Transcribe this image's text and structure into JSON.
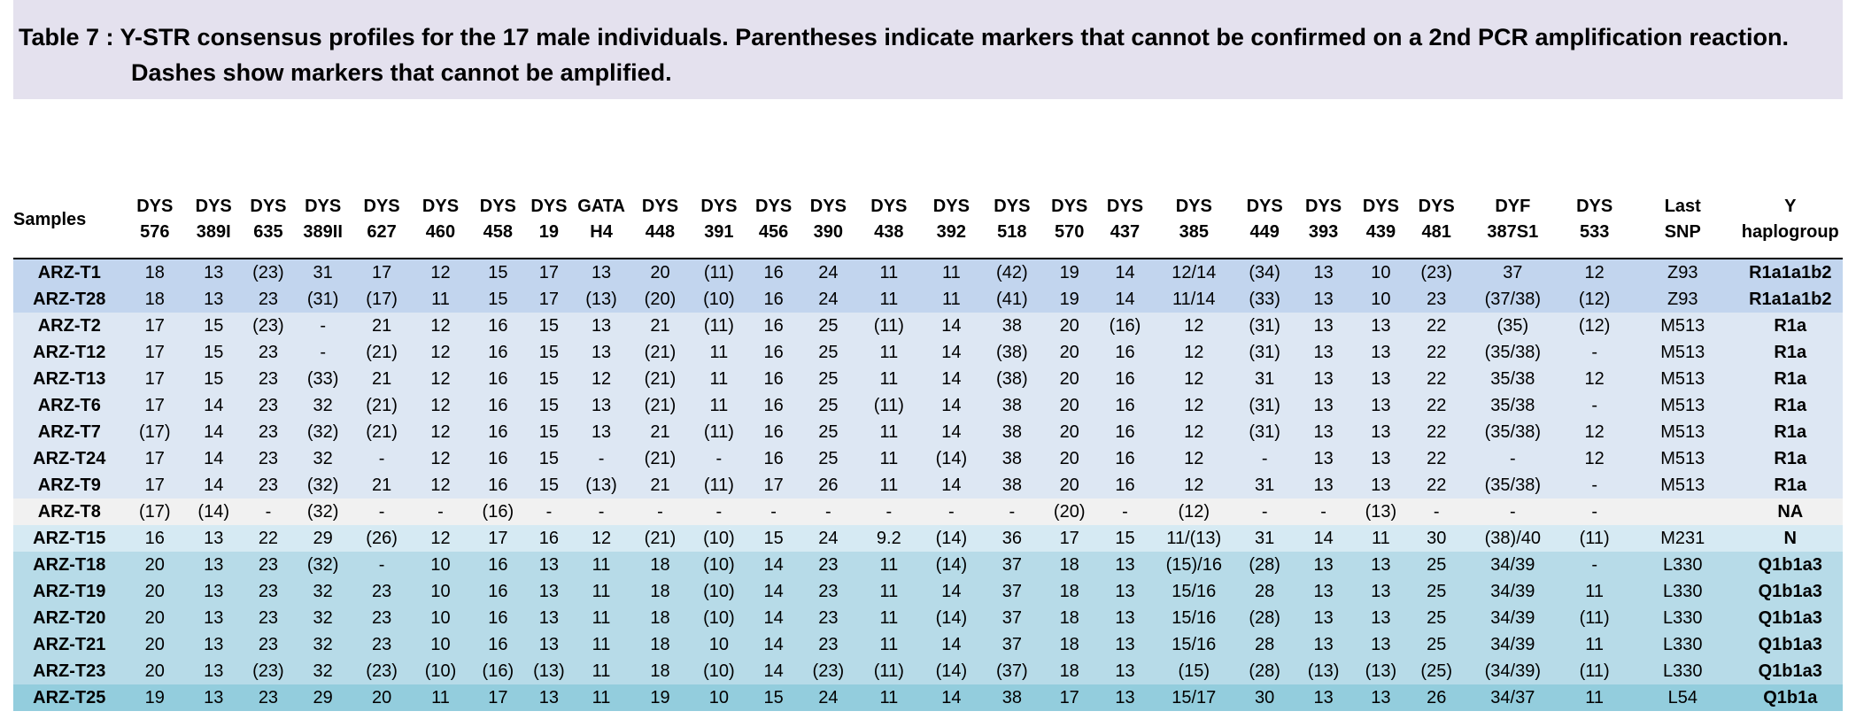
{
  "caption": {
    "line1": "Table 7 : Y-STR consensus profiles for the 17 male individuals. Parentheses indicate markers that cannot be confirmed on a 2nd PCR amplification reaction.",
    "line2": "Dashes show markers that cannot be amplified."
  },
  "columns": [
    [
      "Samples",
      ""
    ],
    [
      "DYS",
      "576"
    ],
    [
      "DYS",
      "389I"
    ],
    [
      "DYS",
      "635"
    ],
    [
      "DYS",
      "389II"
    ],
    [
      "DYS",
      "627"
    ],
    [
      "DYS",
      "460"
    ],
    [
      "DYS",
      "458"
    ],
    [
      "DYS",
      "19"
    ],
    [
      "GATA",
      "H4"
    ],
    [
      "DYS",
      "448"
    ],
    [
      "DYS",
      "391"
    ],
    [
      "DYS",
      "456"
    ],
    [
      "DYS",
      "390"
    ],
    [
      "DYS",
      "438"
    ],
    [
      "DYS",
      "392"
    ],
    [
      "DYS",
      "518"
    ],
    [
      "DYS",
      "570"
    ],
    [
      "DYS",
      "437"
    ],
    [
      "DYS",
      "385"
    ],
    [
      "DYS",
      "449"
    ],
    [
      "DYS",
      "393"
    ],
    [
      "DYS",
      "439"
    ],
    [
      "DYS",
      "481"
    ],
    [
      "DYF",
      "387S1"
    ],
    [
      "DYS",
      "533"
    ],
    [
      "Last",
      "SNP"
    ],
    [
      "Y",
      "haplogroup"
    ]
  ],
  "rows": [
    {
      "group": "r1a1a1b2",
      "cells": [
        "ARZ-T1",
        "18",
        "13",
        "(23)",
        "31",
        "17",
        "12",
        "15",
        "17",
        "13",
        "20",
        "(11)",
        "16",
        "24",
        "11",
        "11",
        "(42)",
        "19",
        "14",
        "12/14",
        "(34)",
        "13",
        "10",
        "(23)",
        "37",
        "12",
        "Z93",
        "R1a1a1b2"
      ]
    },
    {
      "group": "r1a1a1b2",
      "cells": [
        "ARZ-T28",
        "18",
        "13",
        "23",
        "(31)",
        "(17)",
        "11",
        "15",
        "17",
        "(13)",
        "(20)",
        "(10)",
        "16",
        "24",
        "11",
        "11",
        "(41)",
        "19",
        "14",
        "11/14",
        "(33)",
        "13",
        "10",
        "23",
        "(37/38)",
        "(12)",
        "Z93",
        "R1a1a1b2"
      ]
    },
    {
      "group": "r1a",
      "cells": [
        "ARZ-T2",
        "17",
        "15",
        "(23)",
        "-",
        "21",
        "12",
        "16",
        "15",
        "13",
        "21",
        "(11)",
        "16",
        "25",
        "(11)",
        "14",
        "38",
        "20",
        "(16)",
        "12",
        "(31)",
        "13",
        "13",
        "22",
        "(35)",
        "(12)",
        "M513",
        "R1a"
      ]
    },
    {
      "group": "r1a",
      "cells": [
        "ARZ-T12",
        "17",
        "15",
        "23",
        "-",
        "(21)",
        "12",
        "16",
        "15",
        "13",
        "(21)",
        "11",
        "16",
        "25",
        "11",
        "14",
        "(38)",
        "20",
        "16",
        "12",
        "(31)",
        "13",
        "13",
        "22",
        "(35/38)",
        "-",
        "M513",
        "R1a"
      ]
    },
    {
      "group": "r1a",
      "cells": [
        "ARZ-T13",
        "17",
        "15",
        "23",
        "(33)",
        "21",
        "12",
        "16",
        "15",
        "12",
        "(21)",
        "11",
        "16",
        "25",
        "11",
        "14",
        "(38)",
        "20",
        "16",
        "12",
        "31",
        "13",
        "13",
        "22",
        "35/38",
        "12",
        "M513",
        "R1a"
      ]
    },
    {
      "group": "r1a",
      "cells": [
        "ARZ-T6",
        "17",
        "14",
        "23",
        "32",
        "(21)",
        "12",
        "16",
        "15",
        "13",
        "(21)",
        "11",
        "16",
        "25",
        "(11)",
        "14",
        "38",
        "20",
        "16",
        "12",
        "(31)",
        "13",
        "13",
        "22",
        "35/38",
        "-",
        "M513",
        "R1a"
      ]
    },
    {
      "group": "r1a",
      "cells": [
        "ARZ-T7",
        "(17)",
        "14",
        "23",
        "(32)",
        "(21)",
        "12",
        "16",
        "15",
        "13",
        "21",
        "(11)",
        "16",
        "25",
        "11",
        "14",
        "38",
        "20",
        "16",
        "12",
        "(31)",
        "13",
        "13",
        "22",
        "(35/38)",
        "12",
        "M513",
        "R1a"
      ]
    },
    {
      "group": "r1a",
      "cells": [
        "ARZ-T24",
        "17",
        "14",
        "23",
        "32",
        "-",
        "12",
        "16",
        "15",
        "-",
        "(21)",
        "-",
        "16",
        "25",
        "11",
        "(14)",
        "38",
        "20",
        "16",
        "12",
        "-",
        "13",
        "13",
        "22",
        "-",
        "12",
        "M513",
        "R1a"
      ]
    },
    {
      "group": "r1a",
      "cells": [
        "ARZ-T9",
        "17",
        "14",
        "23",
        "(32)",
        "21",
        "12",
        "16",
        "15",
        "(13)",
        "21",
        "(11)",
        "17",
        "26",
        "11",
        "14",
        "38",
        "20",
        "16",
        "12",
        "31",
        "13",
        "13",
        "22",
        "(35/38)",
        "-",
        "M513",
        "R1a"
      ]
    },
    {
      "group": "na",
      "cells": [
        "ARZ-T8",
        "(17)",
        "(14)",
        "-",
        "(32)",
        "-",
        "-",
        "(16)",
        "-",
        "-",
        "-",
        "-",
        "-",
        "-",
        "-",
        "-",
        "-",
        "(20)",
        "-",
        "(12)",
        "-",
        "-",
        "(13)",
        "-",
        "-",
        "-",
        "",
        "NA"
      ]
    },
    {
      "group": "n",
      "cells": [
        "ARZ-T15",
        "16",
        "13",
        "22",
        "29",
        "(26)",
        "12",
        "17",
        "16",
        "12",
        "(21)",
        "(10)",
        "15",
        "24",
        "9.2",
        "(14)",
        "36",
        "17",
        "15",
        "11/(13)",
        "31",
        "14",
        "11",
        "30",
        "(38)/40",
        "(11)",
        "M231",
        "N"
      ]
    },
    {
      "group": "q1b1a3",
      "cells": [
        "ARZ-T18",
        "20",
        "13",
        "23",
        "(32)",
        "-",
        "10",
        "16",
        "13",
        "11",
        "18",
        "(10)",
        "14",
        "23",
        "11",
        "(14)",
        "37",
        "18",
        "13",
        "(15)/16",
        "(28)",
        "13",
        "13",
        "25",
        "34/39",
        "-",
        "L330",
        "Q1b1a3"
      ]
    },
    {
      "group": "q1b1a3",
      "cells": [
        "ARZ-T19",
        "20",
        "13",
        "23",
        "32",
        "23",
        "10",
        "16",
        "13",
        "11",
        "18",
        "(10)",
        "14",
        "23",
        "11",
        "14",
        "37",
        "18",
        "13",
        "15/16",
        "28",
        "13",
        "13",
        "25",
        "34/39",
        "11",
        "L330",
        "Q1b1a3"
      ]
    },
    {
      "group": "q1b1a3",
      "cells": [
        "ARZ-T20",
        "20",
        "13",
        "23",
        "32",
        "23",
        "10",
        "16",
        "13",
        "11",
        "18",
        "(10)",
        "14",
        "23",
        "11",
        "(14)",
        "37",
        "18",
        "13",
        "15/16",
        "(28)",
        "13",
        "13",
        "25",
        "34/39",
        "(11)",
        "L330",
        "Q1b1a3"
      ]
    },
    {
      "group": "q1b1a3",
      "cells": [
        "ARZ-T21",
        "20",
        "13",
        "23",
        "32",
        "23",
        "10",
        "16",
        "13",
        "11",
        "18",
        "10",
        "14",
        "23",
        "11",
        "14",
        "37",
        "18",
        "13",
        "15/16",
        "28",
        "13",
        "13",
        "25",
        "34/39",
        "11",
        "L330",
        "Q1b1a3"
      ]
    },
    {
      "group": "q1b1a3",
      "cells": [
        "ARZ-T23",
        "20",
        "13",
        "(23)",
        "32",
        "(23)",
        "(10)",
        "(16)",
        "(13)",
        "11",
        "18",
        "(10)",
        "14",
        "(23)",
        "(11)",
        "(14)",
        "(37)",
        "18",
        "13",
        "(15)",
        "(28)",
        "(13)",
        "(13)",
        "(25)",
        "(34/39)",
        "(11)",
        "L330",
        "Q1b1a3"
      ]
    },
    {
      "group": "q1b1a",
      "cells": [
        "ARZ-T25",
        "19",
        "13",
        "23",
        "29",
        "20",
        "11",
        "17",
        "13",
        "11",
        "19",
        "10",
        "15",
        "24",
        "11",
        "14",
        "38",
        "17",
        "13",
        "15/17",
        "30",
        "13",
        "13",
        "26",
        "34/37",
        "11",
        "L54",
        "Q1b1a"
      ]
    }
  ]
}
